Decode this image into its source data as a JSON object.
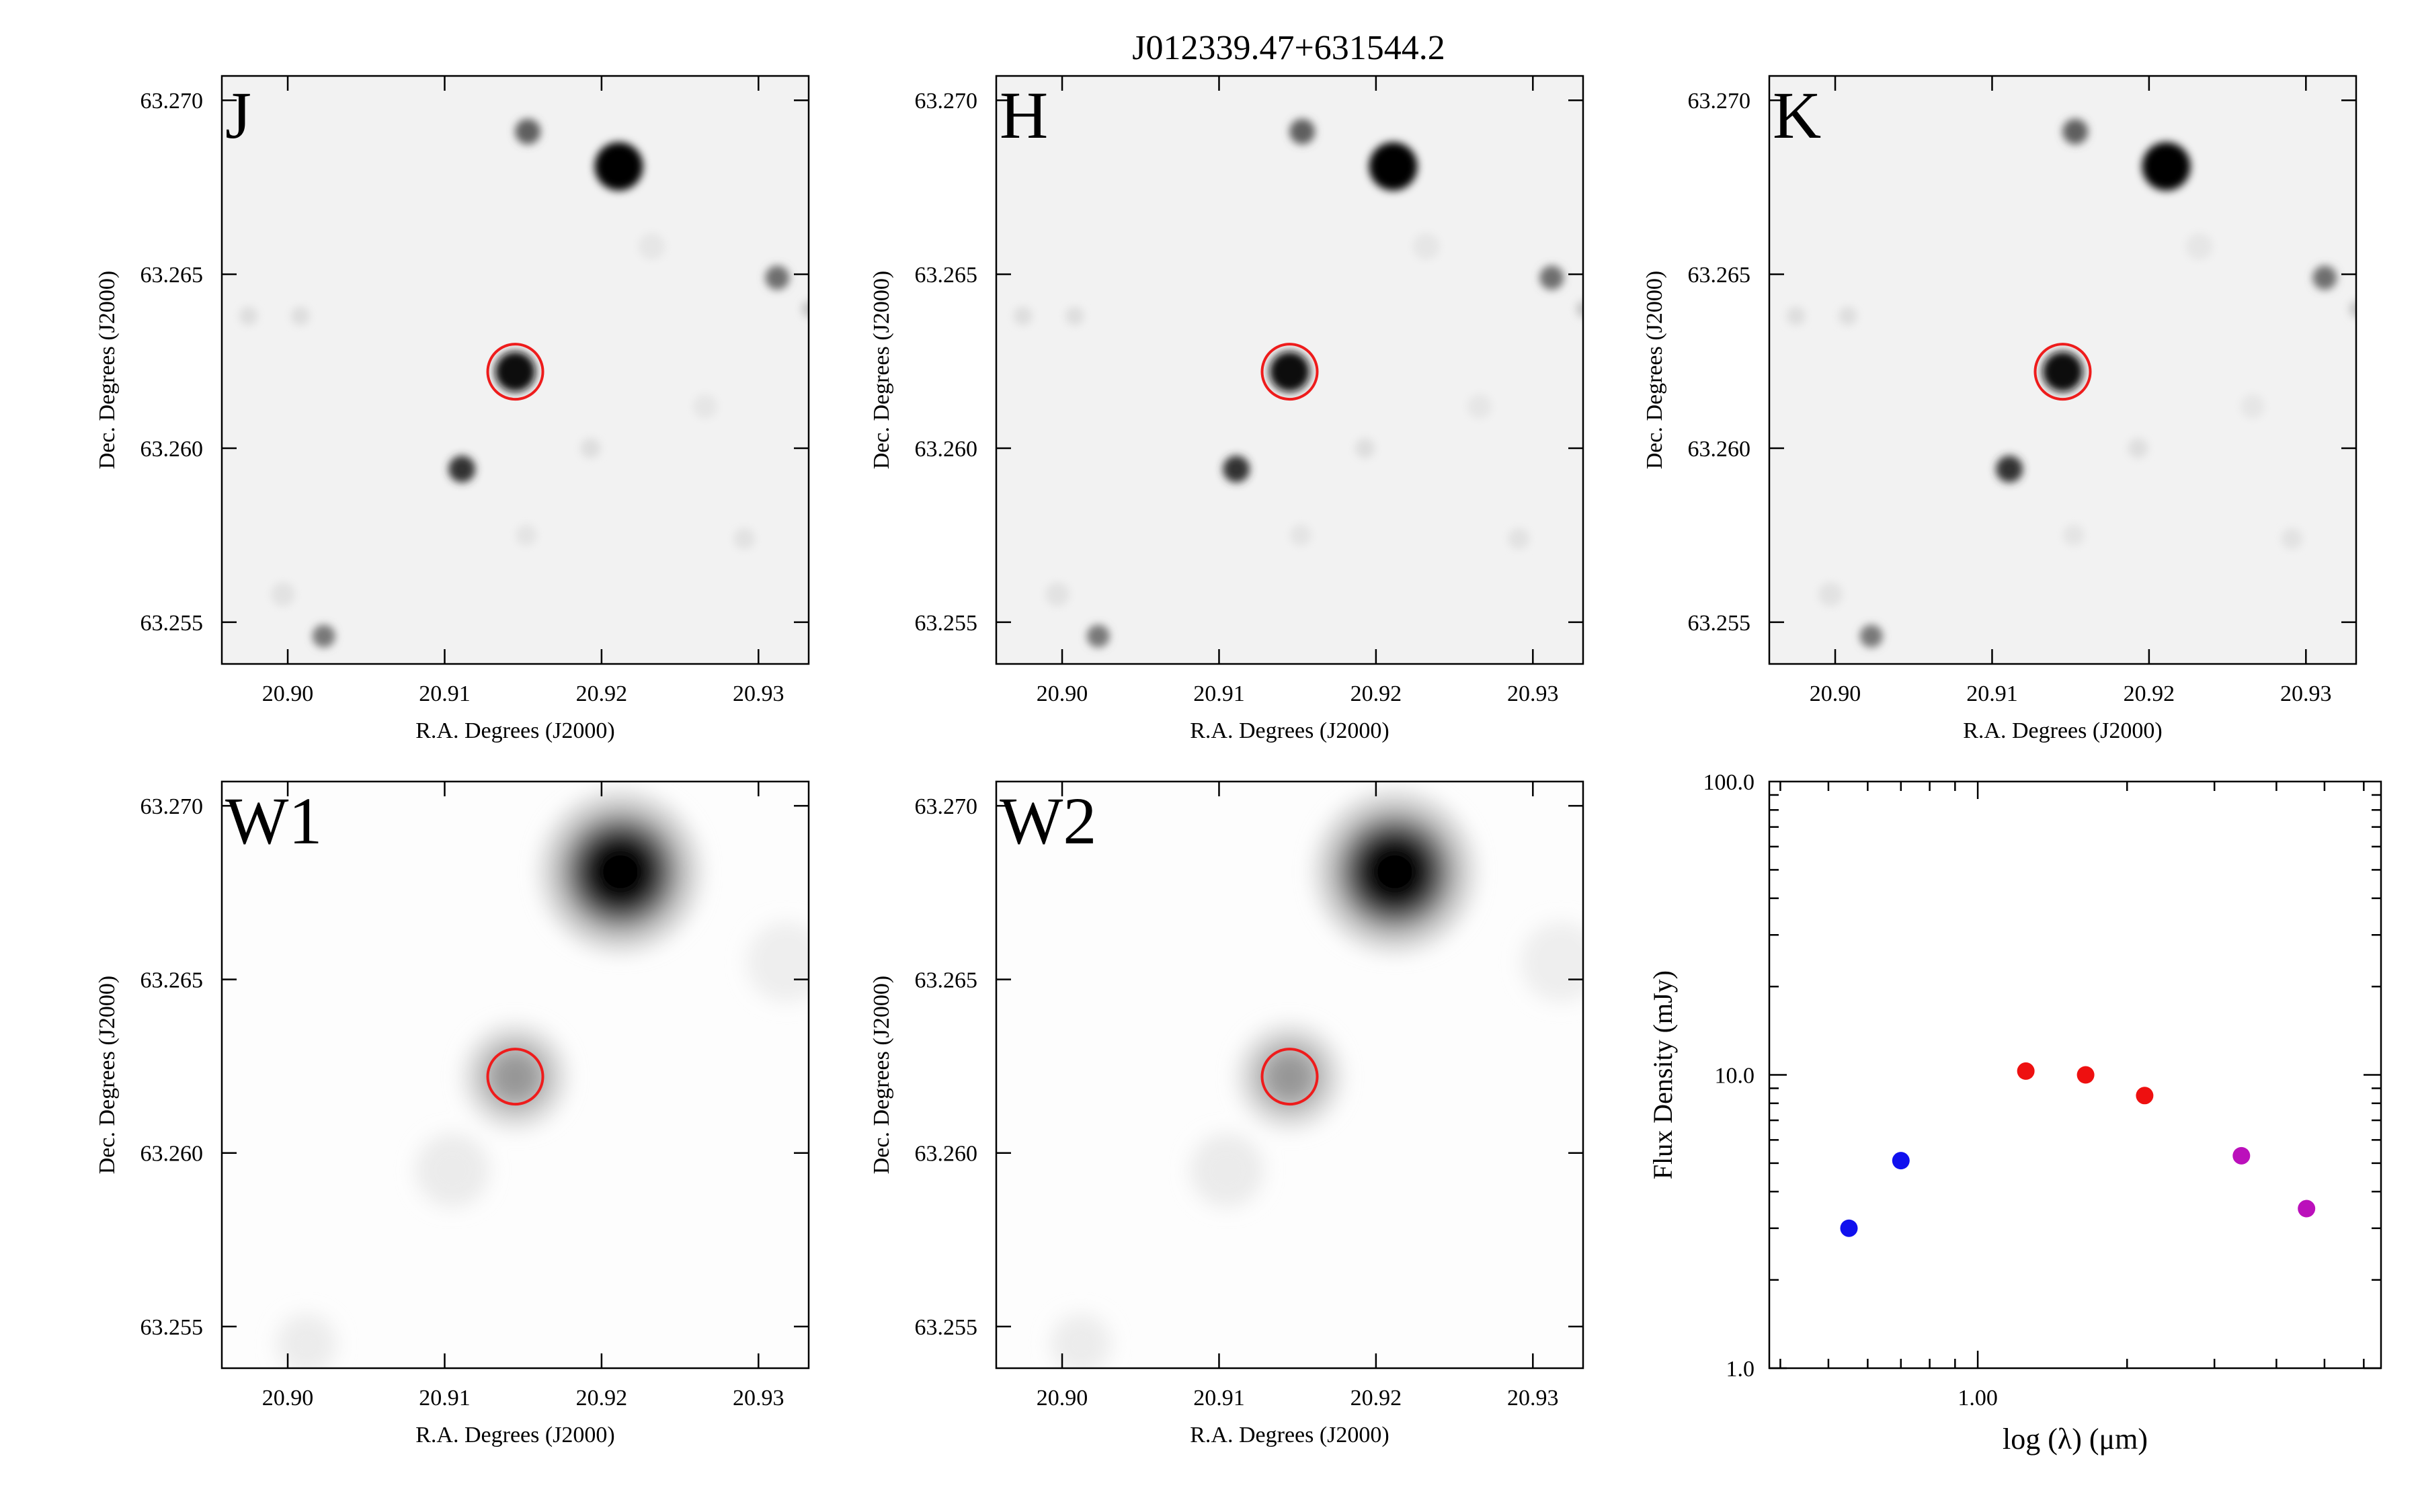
{
  "figure_title": "J012339.47+631544.2",
  "colors": {
    "band_label": "#ff00ff",
    "target_circle": "#ee1c1c",
    "blue": "#1010ee",
    "red": "#ee1010",
    "purple": "#bb10bb"
  },
  "chart_data": [
    {
      "type": "heatmap",
      "band": "J",
      "xlabel": "R.A. Degrees (J2000)",
      "ylabel": "Dec. Degrees (J2000)",
      "xticks": [
        "20.90",
        "20.91",
        "20.92",
        "20.93"
      ],
      "yticks": [
        "63.255",
        "63.260",
        "63.265",
        "63.270"
      ],
      "xlim": [
        20.8958,
        20.9332
      ],
      "ylim": [
        63.2538,
        63.2707
      ],
      "target": {
        "ra": 20.9145,
        "dec": 63.2622
      }
    },
    {
      "type": "heatmap",
      "band": "H",
      "xlabel": "R.A. Degrees (J2000)",
      "ylabel": "Dec. Degrees (J2000)",
      "xticks": [
        "20.90",
        "20.91",
        "20.92",
        "20.93"
      ],
      "yticks": [
        "63.255",
        "63.260",
        "63.265",
        "63.270"
      ],
      "xlim": [
        20.8958,
        20.9332
      ],
      "ylim": [
        63.2538,
        63.2707
      ],
      "target": {
        "ra": 20.9145,
        "dec": 63.2622
      }
    },
    {
      "type": "heatmap",
      "band": "K",
      "xlabel": "R.A. Degrees (J2000)",
      "ylabel": "Dec. Degrees (J2000)",
      "xticks": [
        "20.90",
        "20.91",
        "20.92",
        "20.93"
      ],
      "yticks": [
        "63.255",
        "63.260",
        "63.265",
        "63.270"
      ],
      "xlim": [
        20.8958,
        20.9332
      ],
      "ylim": [
        63.2538,
        63.2707
      ],
      "target": {
        "ra": 20.9145,
        "dec": 63.2622
      }
    },
    {
      "type": "heatmap",
      "band": "W1",
      "xlabel": "R.A. Degrees (J2000)",
      "ylabel": "Dec. Degrees (J2000)",
      "xticks": [
        "20.90",
        "20.91",
        "20.92",
        "20.93"
      ],
      "yticks": [
        "63.255",
        "63.260",
        "63.265",
        "63.270"
      ],
      "xlim": [
        20.8958,
        20.9332
      ],
      "ylim": [
        63.2538,
        63.2707
      ],
      "target": {
        "ra": 20.9145,
        "dec": 63.2622
      }
    },
    {
      "type": "heatmap",
      "band": "W2",
      "xlabel": "R.A. Degrees (J2000)",
      "ylabel": "Dec. Degrees (J2000)",
      "xticks": [
        "20.90",
        "20.91",
        "20.92",
        "20.93"
      ],
      "yticks": [
        "63.255",
        "63.260",
        "63.265",
        "63.270"
      ],
      "xlim": [
        20.8958,
        20.9332
      ],
      "ylim": [
        63.2538,
        63.2707
      ],
      "target": {
        "ra": 20.9145,
        "dec": 63.2622
      }
    },
    {
      "type": "scatter",
      "xlabel": "log (λ) (μm)",
      "ylabel": "Flux Density (mJy)",
      "xscale": "log",
      "yscale": "log",
      "xlim": [
        0.38,
        6.5
      ],
      "ylim": [
        1.0,
        100.0
      ],
      "xticks": [
        "1.00"
      ],
      "yticks": [
        "1.0",
        "10.0",
        "100.0"
      ],
      "series": [
        {
          "color": "blue",
          "x": [
            0.55,
            0.7
          ],
          "y": [
            3.0,
            5.1
          ]
        },
        {
          "color": "red",
          "x": [
            1.25,
            1.65,
            2.17
          ],
          "y": [
            10.3,
            10.0,
            8.5
          ]
        },
        {
          "color": "purple",
          "x": [
            3.4,
            4.6
          ],
          "y": [
            5.3,
            3.5
          ]
        }
      ]
    }
  ]
}
